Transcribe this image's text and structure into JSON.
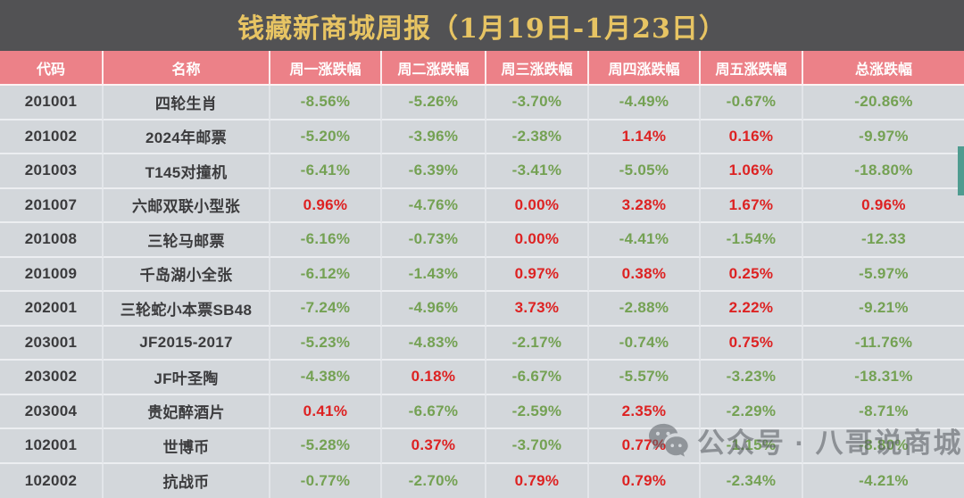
{
  "title": "钱藏新商城周报（1月19日-1月23日）",
  "colors": {
    "title_bg": "#525254",
    "title_gold": "#e7c463",
    "header_bg": "#ec8188",
    "row_bg": "#d3d7db",
    "negative_green": "#74a153",
    "positive_red": "#dd2222"
  },
  "chart_data": {
    "type": "table",
    "title": "钱藏新商城周报（1月19日-1月23日）",
    "columns": [
      "代码",
      "名称",
      "周一涨跌幅",
      "周二涨跌幅",
      "周三涨跌幅",
      "周四涨跌幅",
      "周五涨跌幅",
      "总涨跌幅"
    ],
    "rows": [
      {
        "code": "201001",
        "name": "四轮生肖",
        "values": [
          "-8.56%",
          "-5.26%",
          "-3.70%",
          "-4.49%",
          "-0.67%",
          "-20.86%"
        ]
      },
      {
        "code": "201002",
        "name": "2024年邮票",
        "values": [
          "-5.20%",
          "-3.96%",
          "-2.38%",
          "1.14%",
          "0.16%",
          "-9.97%"
        ]
      },
      {
        "code": "201003",
        "name": "T145对撞机",
        "values": [
          "-6.41%",
          "-6.39%",
          "-3.41%",
          "-5.05%",
          "1.06%",
          "-18.80%"
        ]
      },
      {
        "code": "201007",
        "name": "六邮双联小型张",
        "values": [
          "0.96%",
          "-4.76%",
          "0.00%",
          "3.28%",
          "1.67%",
          "0.96%"
        ]
      },
      {
        "code": "201008",
        "name": "三轮马邮票",
        "values": [
          "-6.16%",
          "-0.73%",
          "0.00%",
          "-4.41%",
          "-1.54%",
          "-12.33"
        ]
      },
      {
        "code": "201009",
        "name": "千岛湖小全张",
        "values": [
          "-6.12%",
          "-1.43%",
          "0.97%",
          "0.38%",
          "0.25%",
          "-5.97%"
        ]
      },
      {
        "code": "202001",
        "name": "三轮蛇小本票SB48",
        "values": [
          "-7.24%",
          "-4.96%",
          "3.73%",
          "-2.88%",
          "2.22%",
          "-9.21%"
        ]
      },
      {
        "code": "203001",
        "name": "JF2015-2017",
        "values": [
          "-5.23%",
          "-4.83%",
          "-2.17%",
          "-0.74%",
          "0.75%",
          "-11.76%"
        ]
      },
      {
        "code": "203002",
        "name": "JF叶圣陶",
        "values": [
          "-4.38%",
          "0.18%",
          "-6.67%",
          "-5.57%",
          "-3.23%",
          "-18.31%"
        ]
      },
      {
        "code": "203004",
        "name": "贵妃醉酒片",
        "values": [
          "0.41%",
          "-6.67%",
          "-2.59%",
          "2.35%",
          "-2.29%",
          "-8.71%"
        ]
      },
      {
        "code": "102001",
        "name": "世博币",
        "values": [
          "-5.28%",
          "0.37%",
          "-3.70%",
          "0.77%",
          "-1.15%",
          "-8.80%"
        ]
      },
      {
        "code": "102002",
        "name": "抗战币",
        "values": [
          "-0.77%",
          "-2.70%",
          "0.79%",
          "0.79%",
          "-2.34%",
          "-4.21%"
        ]
      }
    ]
  },
  "watermark": {
    "icon": "wechat-icon",
    "text": "公众号 · 八哥说商城"
  }
}
